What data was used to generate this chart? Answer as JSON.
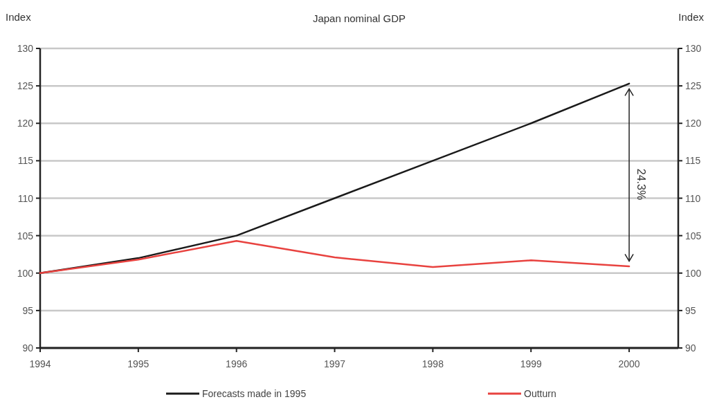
{
  "chart_data": {
    "type": "line",
    "title": "Japan nominal GDP",
    "ylabel": "Index",
    "y2label": "Index",
    "x": [
      1994,
      1995,
      1996,
      1997,
      1998,
      1999,
      2000
    ],
    "xlim": [
      1994,
      2000.5
    ],
    "xticks": [
      1994,
      1995,
      1996,
      1997,
      1998,
      1999,
      2000
    ],
    "ylim": [
      90,
      130
    ],
    "yticks": [
      90,
      95,
      100,
      105,
      110,
      115,
      120,
      125,
      130
    ],
    "y2lim": [
      90,
      130
    ],
    "y2ticks": [
      90,
      95,
      100,
      105,
      110,
      115,
      120,
      125,
      130
    ],
    "series": [
      {
        "name": "Forecasts made in 1995",
        "color": "#1a1a1a",
        "values": [
          100,
          102,
          105,
          110,
          115,
          120,
          125.3
        ]
      },
      {
        "name": "Outturn",
        "color": "#e8423f",
        "values": [
          100,
          101.8,
          104.3,
          102.1,
          100.8,
          101.7,
          100.9
        ]
      }
    ],
    "annotations": [
      "24.3%"
    ],
    "grid": "y",
    "legend": "bottom",
    "line_style": "solid",
    "marker": "none"
  }
}
